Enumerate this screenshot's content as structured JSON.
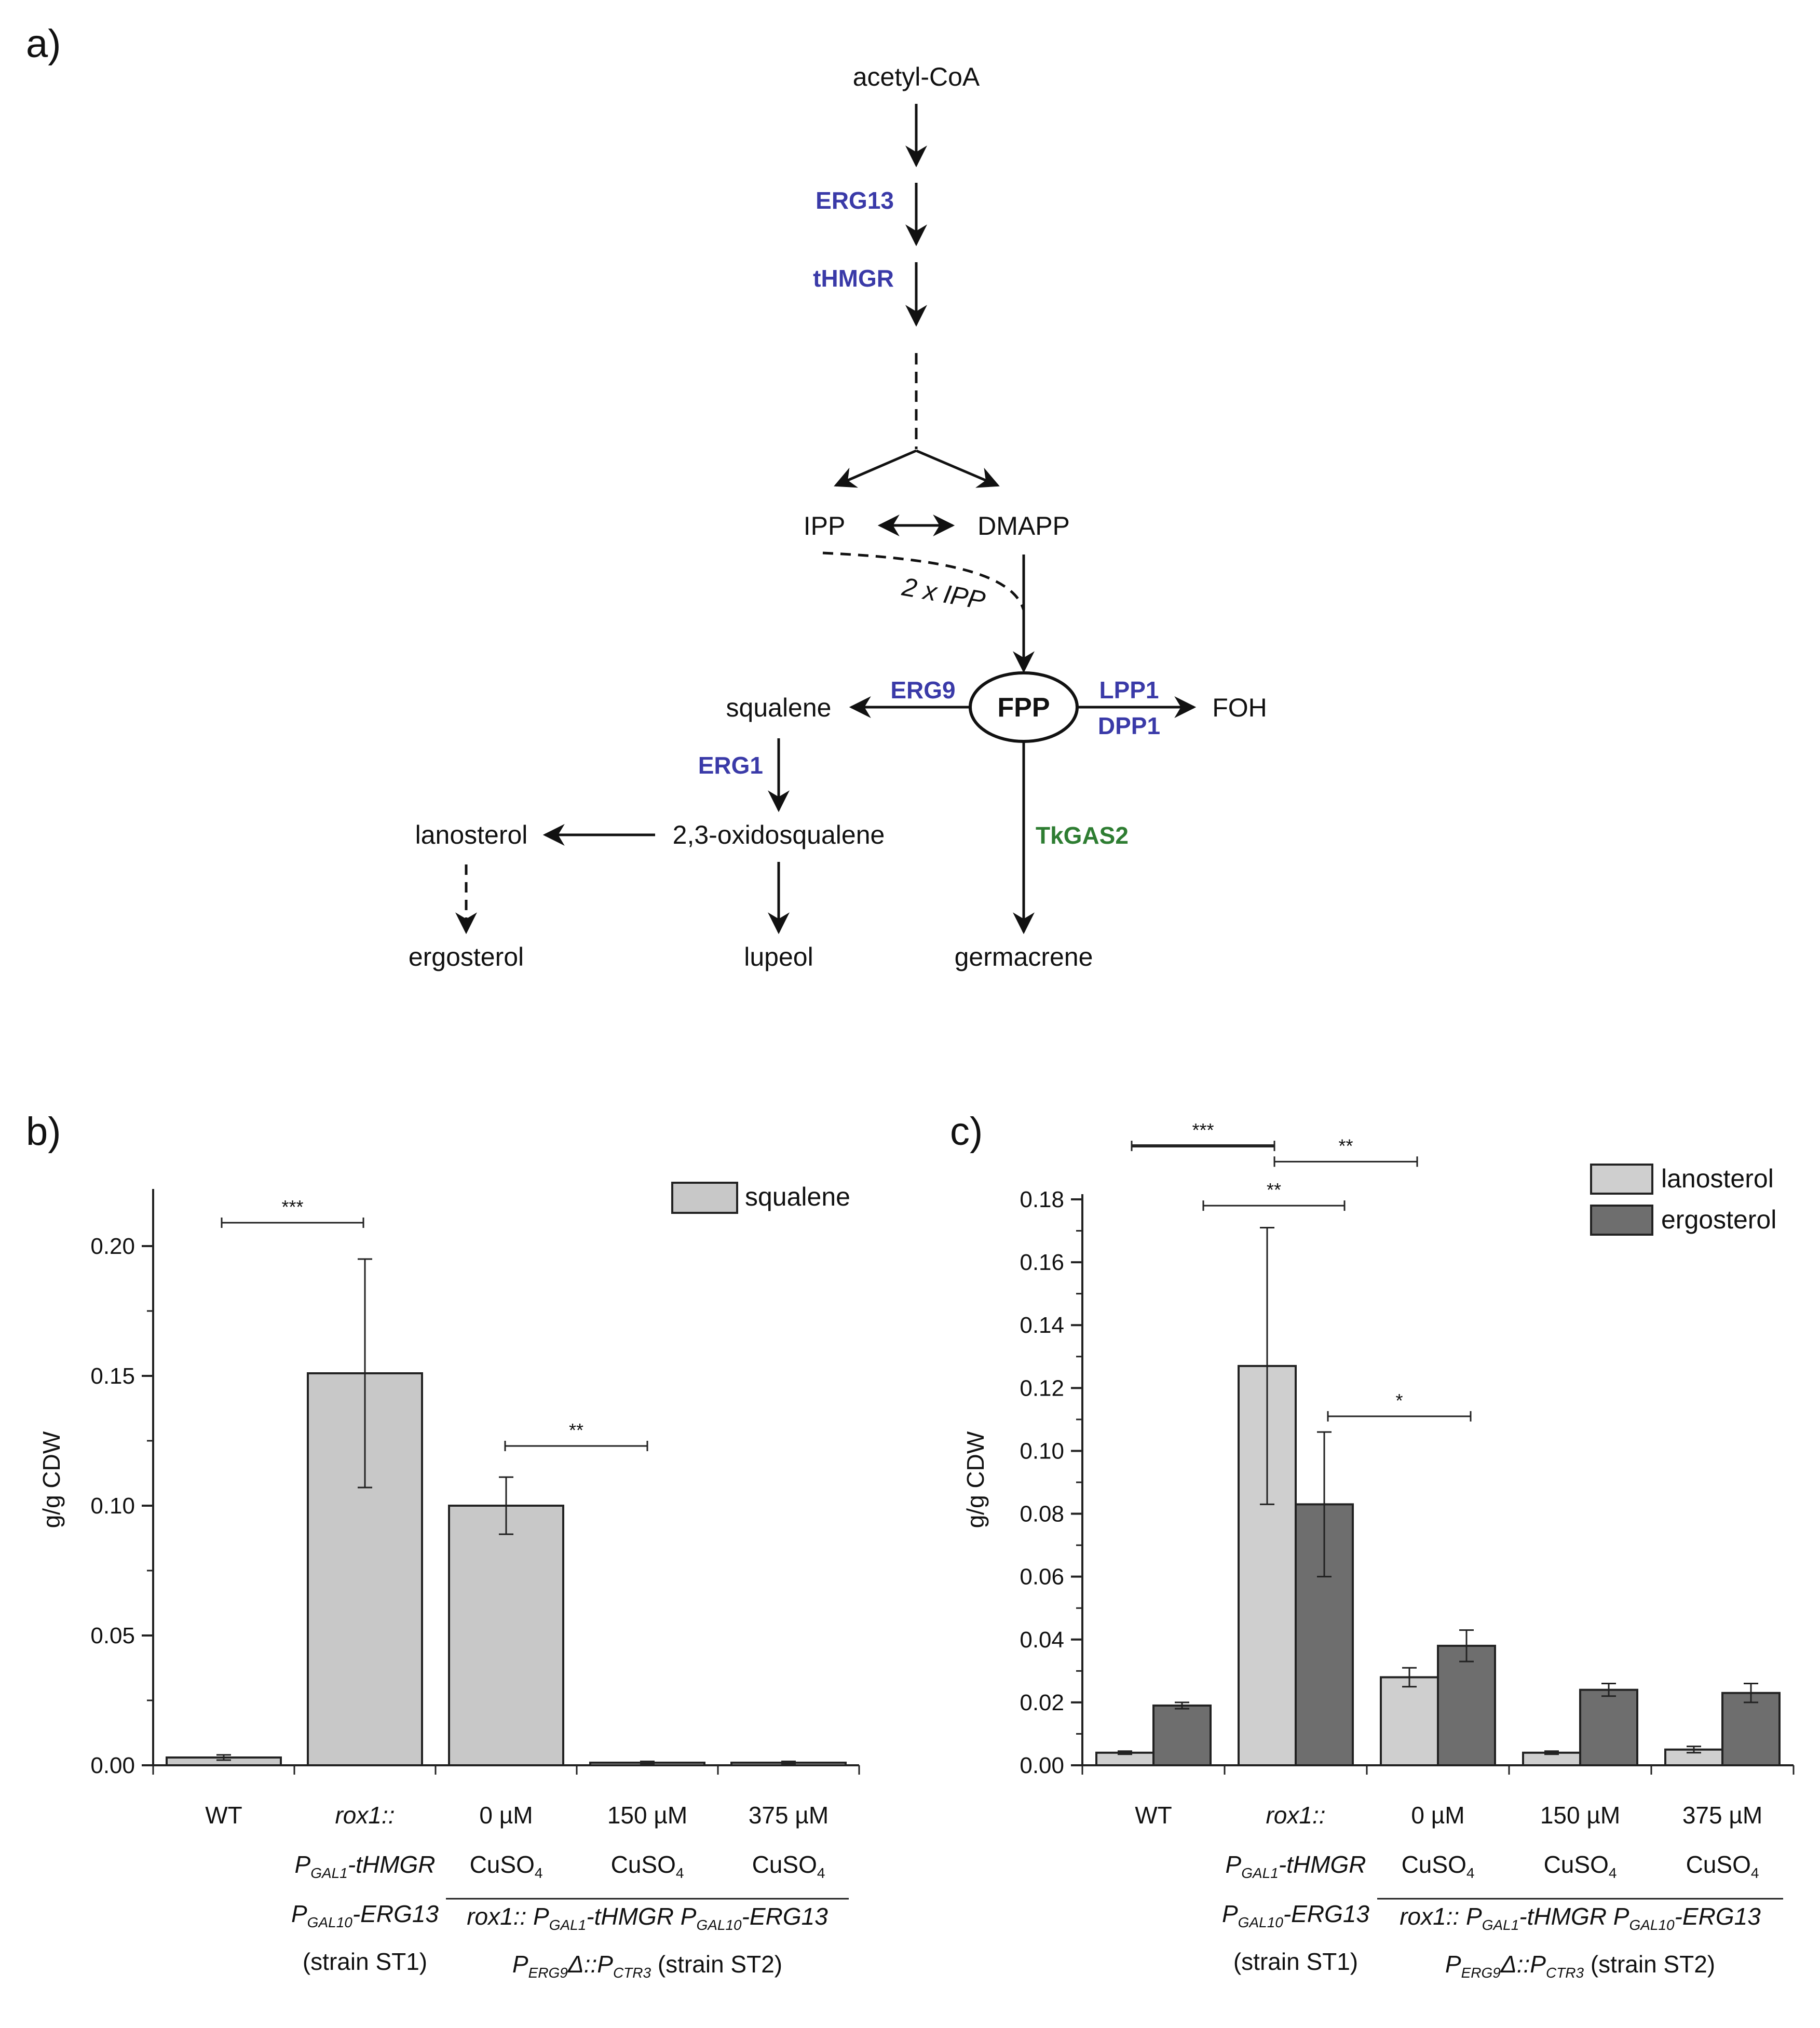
{
  "panels": {
    "a": "a)",
    "b": "b)",
    "c": "c)"
  },
  "pathway": {
    "acetyl_coa": "acetyl-CoA",
    "ipp": "IPP",
    "dmapp": "DMAPP",
    "two_ipp": "2 x IPP",
    "fpp": "FPP",
    "squalene": "squalene",
    "foh": "FOH",
    "oxidosqualene": "2,3-oxidosqualene",
    "lanosterol": "lanosterol",
    "ergosterol": "ergosterol",
    "lupeol": "lupeol",
    "germacrene": "germacrene",
    "enzymes": {
      "erg13": "ERG13",
      "thmgr": "tHMGR",
      "erg9": "ERG9",
      "lpp1": "LPP1",
      "dpp1": "DPP1",
      "erg1": "ERG1",
      "tkgas2": "TkGAS2"
    },
    "colors": {
      "enzyme": "#3a3aa8",
      "tkgas2": "#2e7d32"
    }
  },
  "categories": {
    "wt": "WT",
    "st1": {
      "line1": "rox1::",
      "line2_p": "P",
      "line2_sub": "GAL1",
      "line2_rest": "-tHMGR",
      "line3_p": "P",
      "line3_sub": "GAL10",
      "line3_rest": "-ERG13",
      "line4": "(strain ST1)"
    },
    "cu0": {
      "line1": "0 µM",
      "line2": "CuSO",
      "line2_sub": "4"
    },
    "cu150": {
      "line1": "150 µM",
      "line2": "CuSO",
      "line2_sub": "4"
    },
    "cu375": {
      "line1": "375 µM",
      "line2": "CuSO",
      "line2_sub": "4"
    },
    "st2": {
      "l1a": "rox1:: P",
      "l1b": "GAL1",
      "l1c": "-tHMGR P",
      "l1d": "GAL10",
      "l1e": "-ERG13",
      "l2a": "P",
      "l2b": "ERG9",
      "l2c": "Δ::P",
      "l2d": "CTR3",
      "l2e": "(strain ST2)"
    }
  },
  "chart_data": [
    {
      "type": "bar",
      "panel": "b)",
      "ylabel": "g/g CDW",
      "ylim": [
        0,
        0.22
      ],
      "yticks": [
        "0.00",
        "0.05",
        "0.10",
        "0.15",
        "0.20"
      ],
      "categories": [
        "WT",
        "rox1:: PGAL1-tHMGR PGAL10-ERG13 (strain ST1)",
        "0 µM CuSO4",
        "150 µM CuSO4",
        "375 µM CuSO4"
      ],
      "series": [
        {
          "name": "squalene",
          "color": "#c8c8c8",
          "values": [
            0.003,
            0.151,
            0.1,
            0.001,
            0.001
          ],
          "errors": [
            0.001,
            0.044,
            0.011,
            0.0005,
            0.0005
          ]
        }
      ],
      "significance": [
        {
          "from": 0,
          "to": 1,
          "label": "***",
          "y": 0.209
        },
        {
          "from": 2,
          "to": 3,
          "label": "**",
          "y": 0.123
        }
      ],
      "legend": "top-right"
    },
    {
      "type": "bar",
      "panel": "c)",
      "ylabel": "g/g CDW",
      "ylim": [
        0,
        0.18
      ],
      "yticks": [
        "0.00",
        "0.02",
        "0.04",
        "0.06",
        "0.08",
        "0.10",
        "0.12",
        "0.14",
        "0.16",
        "0.18"
      ],
      "categories": [
        "WT",
        "rox1:: PGAL1-tHMGR PGAL10-ERG13 (strain ST1)",
        "0 µM CuSO4",
        "150 µM CuSO4",
        "375 µM CuSO4"
      ],
      "series": [
        {
          "name": "lanosterol",
          "color": "#cfcfcf",
          "values": [
            0.004,
            0.127,
            0.028,
            0.004,
            0.005
          ],
          "errors": [
            0.0005,
            0.044,
            0.003,
            0.0005,
            0.001
          ]
        },
        {
          "name": "ergosterol",
          "color": "#6e6e6e",
          "values": [
            0.019,
            0.083,
            0.038,
            0.024,
            0.023
          ],
          "errors": [
            0.001,
            0.023,
            0.005,
            0.002,
            0.003
          ]
        }
      ],
      "significance": [
        {
          "label": "***",
          "y": 0.197,
          "bold": true
        },
        {
          "label": "**",
          "y": 0.192
        },
        {
          "label": "**",
          "y": 0.178
        },
        {
          "label": "*",
          "y": 0.111
        }
      ],
      "legend": "top-right"
    }
  ]
}
